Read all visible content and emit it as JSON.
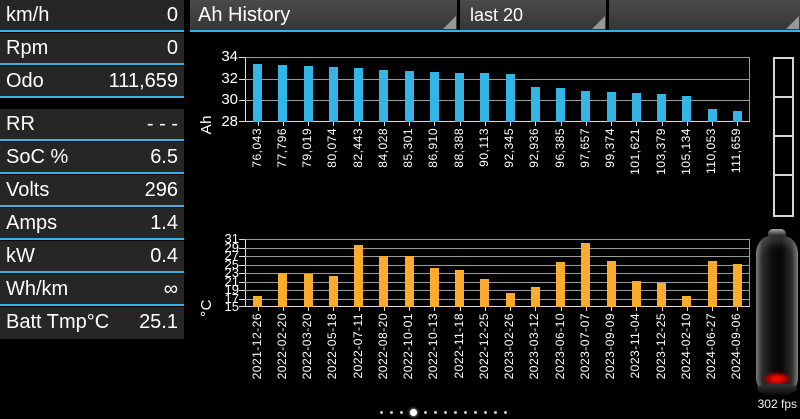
{
  "header": {
    "title": "Ah History",
    "range_label": "last 20"
  },
  "sidebar": {
    "rows": [
      {
        "label": "km/h",
        "value": "0"
      },
      {
        "label": "Rpm",
        "value": "0"
      },
      {
        "label": "Odo",
        "value": "111,659"
      },
      {
        "label": "RR",
        "value": "- - -"
      },
      {
        "label": "SoC %",
        "value": "6.5"
      },
      {
        "label": "Volts",
        "value": "296"
      },
      {
        "label": "Amps",
        "value": "1.4"
      },
      {
        "label": "kW",
        "value": "0.4"
      },
      {
        "label": "Wh/km",
        "value": "∞"
      },
      {
        "label": "Batt Tmp°C",
        "value": "25.1"
      }
    ]
  },
  "chart_data": [
    {
      "type": "bar",
      "title": "Ah History",
      "ylabel": "Ah",
      "ylim": [
        28,
        34
      ],
      "yticks": [
        28,
        30,
        32,
        34
      ],
      "grid": true,
      "bar_color": "#33b5e5",
      "categories": [
        "76,043",
        "77,796",
        "79,019",
        "80,074",
        "82,443",
        "84,028",
        "85,301",
        "86,910",
        "88,388",
        "90,113",
        "92,345",
        "92,936",
        "96,385",
        "97,657",
        "99,374",
        "101,621",
        "103,379",
        "105,134",
        "110,053",
        "111,659"
      ],
      "values": [
        33.4,
        33.3,
        33.2,
        33.1,
        32.95,
        32.8,
        32.7,
        32.6,
        32.55,
        32.5,
        32.45,
        31.25,
        31.1,
        30.9,
        30.75,
        30.65,
        30.55,
        30.4,
        29.2,
        29.0
      ]
    },
    {
      "type": "bar",
      "title": "",
      "ylabel": "°C",
      "ylim": [
        15,
        31
      ],
      "yticks": [
        15,
        17,
        19,
        21,
        23,
        25,
        27,
        29,
        31
      ],
      "grid": true,
      "bar_color": "#fbab2e",
      "categories": [
        "2021-12-26",
        "2022-02-20",
        "2022-03-20",
        "2022-05-18",
        "2022-07-11",
        "2022-08-20",
        "2022-10-01",
        "2022-10-13",
        "2022-11-18",
        "2022-12-25",
        "2023-02-26",
        "2023-03-12",
        "2023-06-10",
        "2023-07-07",
        "2023-09-09",
        "2023-11-04",
        "2023-12-25",
        "2024-02-10",
        "2024-06-27",
        "2024-09-06"
      ],
      "values": [
        17.5,
        22.9,
        22.7,
        22.2,
        29.5,
        27.0,
        27.0,
        24.1,
        23.8,
        21.5,
        18.3,
        19.7,
        25.5,
        30.0,
        25.9,
        21.1,
        20.7,
        17.5,
        25.9,
        25.1
      ]
    }
  ],
  "footer": {
    "fps_label": "302 fps",
    "page_dots": {
      "count": 13,
      "active_index": 3
    }
  },
  "colors": {
    "accent_blue": "#33b5e5",
    "bar_blue": "#33b5e5",
    "bar_orange": "#fbab2e",
    "row_background": "#262626",
    "header_background": "#3f3f3f",
    "gridline": "#9b9b9b",
    "battery_low_red": "#cc0000"
  }
}
